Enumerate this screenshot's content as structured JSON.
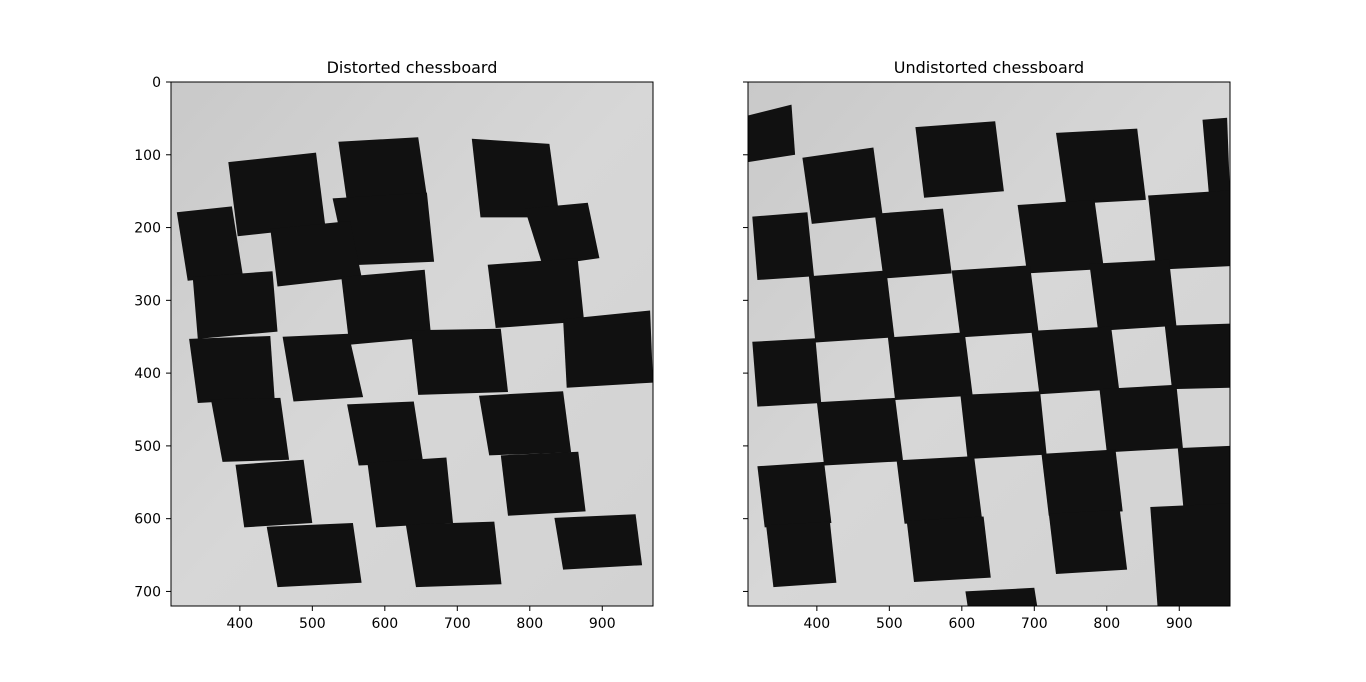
{
  "chart_data": [
    {
      "type": "image",
      "title": "Distorted chessboard",
      "xlim": [
        305,
        970
      ],
      "ylim": [
        720,
        0
      ],
      "xticks": [
        400,
        500,
        600,
        700,
        800,
        900
      ],
      "yticks": [
        0,
        100,
        200,
        300,
        400,
        500,
        600,
        700
      ],
      "show_ytick_labels": true,
      "grid": false,
      "content": "grayscale photo of a black and white chessboard",
      "board_quads": [
        [
          [
            384,
            110
          ],
          [
            505,
            97
          ],
          [
            518,
            199
          ],
          [
            397,
            212
          ]
        ],
        [
          [
            389,
            171
          ],
          [
            404,
            265
          ],
          [
            328,
            273
          ],
          [
            313,
            179
          ]
        ],
        [
          [
            536,
            82
          ],
          [
            646,
            76
          ],
          [
            658,
            157
          ],
          [
            548,
            166
          ]
        ],
        [
          [
            668,
            247
          ],
          [
            548,
            252
          ],
          [
            528,
            160
          ],
          [
            658,
            152
          ]
        ],
        [
          [
            720,
            78
          ],
          [
            827,
            85
          ],
          [
            841,
            186
          ],
          [
            732,
            186
          ]
        ],
        [
          [
            793,
            174
          ],
          [
            880,
            166
          ],
          [
            896,
            242
          ],
          [
            818,
            253
          ]
        ],
        [
          [
            442,
            202
          ],
          [
            552,
            191
          ],
          [
            568,
            268
          ],
          [
            452,
            281
          ]
        ],
        [
          [
            335,
            268
          ],
          [
            445,
            260
          ],
          [
            452,
            343
          ],
          [
            342,
            353
          ]
        ],
        [
          [
            540,
            268
          ],
          [
            655,
            258
          ],
          [
            664,
            351
          ],
          [
            551,
            361
          ]
        ],
        [
          [
            742,
            251
          ],
          [
            866,
            242
          ],
          [
            875,
            329
          ],
          [
            753,
            338
          ]
        ],
        [
          [
            459,
            350
          ],
          [
            550,
            346
          ],
          [
            570,
            433
          ],
          [
            474,
            439
          ]
        ],
        [
          [
            330,
            353
          ],
          [
            442,
            349
          ],
          [
            448,
            435
          ],
          [
            342,
            441
          ]
        ],
        [
          [
            636,
            341
          ],
          [
            760,
            339
          ],
          [
            770,
            426
          ],
          [
            646,
            430
          ]
        ],
        [
          [
            846,
            326
          ],
          [
            966,
            314
          ],
          [
            970,
            413
          ],
          [
            851,
            420
          ]
        ],
        [
          [
            548,
            443
          ],
          [
            640,
            439
          ],
          [
            653,
            523
          ],
          [
            564,
            527
          ]
        ],
        [
          [
            360,
            436
          ],
          [
            456,
            434
          ],
          [
            468,
            519
          ],
          [
            376,
            522
          ]
        ],
        [
          [
            730,
            431
          ],
          [
            846,
            425
          ],
          [
            857,
            509
          ],
          [
            744,
            513
          ]
        ],
        [
          [
            394,
            526
          ],
          [
            488,
            519
          ],
          [
            500,
            606
          ],
          [
            406,
            612
          ]
        ],
        [
          [
            576,
            523
          ],
          [
            685,
            516
          ],
          [
            694,
            606
          ],
          [
            588,
            612
          ]
        ],
        [
          [
            760,
            513
          ],
          [
            867,
            508
          ],
          [
            877,
            590
          ],
          [
            770,
            596
          ]
        ],
        [
          [
            437,
            611
          ],
          [
            556,
            606
          ],
          [
            568,
            688
          ],
          [
            452,
            694
          ]
        ],
        [
          [
            629,
            608
          ],
          [
            751,
            604
          ],
          [
            761,
            690
          ],
          [
            643,
            694
          ]
        ],
        [
          [
            834,
            599
          ],
          [
            946,
            594
          ],
          [
            955,
            664
          ],
          [
            846,
            670
          ]
        ]
      ]
    },
    {
      "type": "image",
      "title": "Undistorted chessboard",
      "xlim": [
        305,
        970
      ],
      "ylim": [
        720,
        0
      ],
      "xticks": [
        400,
        500,
        600,
        700,
        800,
        900
      ],
      "yticks": [
        0,
        100,
        200,
        300,
        400,
        500,
        600,
        700
      ],
      "show_ytick_labels": false,
      "grid": false,
      "content": "grayscale photo of a black and white chessboard",
      "board_quads": [
        [
          [
            305,
            46
          ],
          [
            365,
            31
          ],
          [
            370,
            100
          ],
          [
            305,
            110
          ]
        ],
        [
          [
            380,
            104
          ],
          [
            478,
            90
          ],
          [
            491,
            185
          ],
          [
            393,
            195
          ]
        ],
        [
          [
            536,
            62
          ],
          [
            646,
            54
          ],
          [
            658,
            150
          ],
          [
            548,
            159
          ]
        ],
        [
          [
            730,
            70
          ],
          [
            842,
            64
          ],
          [
            854,
            162
          ],
          [
            744,
            168
          ]
        ],
        [
          [
            932,
            52
          ],
          [
            966,
            49
          ],
          [
            970,
            154
          ],
          [
            941,
            156
          ]
        ],
        [
          [
            311,
            185
          ],
          [
            387,
            179
          ],
          [
            396,
            267
          ],
          [
            318,
            272
          ]
        ],
        [
          [
            480,
            181
          ],
          [
            574,
            174
          ],
          [
            586,
            263
          ],
          [
            492,
            270
          ]
        ],
        [
          [
            677,
            169
          ],
          [
            783,
            162
          ],
          [
            796,
            257
          ],
          [
            690,
            263
          ]
        ],
        [
          [
            857,
            156
          ],
          [
            970,
            149
          ],
          [
            970,
            253
          ],
          [
            868,
            258
          ]
        ],
        [
          [
            389,
            267
          ],
          [
            496,
            259
          ],
          [
            507,
            351
          ],
          [
            398,
            358
          ]
        ],
        [
          [
            586,
            259
          ],
          [
            694,
            252
          ],
          [
            706,
            344
          ],
          [
            598,
            351
          ]
        ],
        [
          [
            776,
            250
          ],
          [
            886,
            244
          ],
          [
            896,
            335
          ],
          [
            788,
            342
          ]
        ],
        [
          [
            311,
            357
          ],
          [
            398,
            352
          ],
          [
            406,
            441
          ],
          [
            318,
            446
          ]
        ],
        [
          [
            498,
            351
          ],
          [
            604,
            344
          ],
          [
            615,
            431
          ],
          [
            508,
            437
          ]
        ],
        [
          [
            696,
            342
          ],
          [
            806,
            336
          ],
          [
            817,
            422
          ],
          [
            707,
            429
          ]
        ],
        [
          [
            880,
            335
          ],
          [
            970,
            332
          ],
          [
            970,
            420
          ],
          [
            890,
            422
          ]
        ],
        [
          [
            400,
            440
          ],
          [
            508,
            434
          ],
          [
            519,
            521
          ],
          [
            410,
            527
          ]
        ],
        [
          [
            598,
            430
          ],
          [
            708,
            425
          ],
          [
            717,
            512
          ],
          [
            608,
            518
          ]
        ],
        [
          [
            790,
            422
          ],
          [
            896,
            416
          ],
          [
            905,
            503
          ],
          [
            800,
            509
          ]
        ],
        [
          [
            318,
            528
          ],
          [
            410,
            522
          ],
          [
            420,
            606
          ],
          [
            328,
            612
          ]
        ],
        [
          [
            510,
            520
          ],
          [
            617,
            514
          ],
          [
            628,
            601
          ],
          [
            521,
            607
          ]
        ],
        [
          [
            710,
            511
          ],
          [
            812,
            505
          ],
          [
            822,
            590
          ],
          [
            720,
            596
          ]
        ],
        [
          [
            898,
            503
          ],
          [
            970,
            500
          ],
          [
            970,
            585
          ],
          [
            906,
            588
          ]
        ],
        [
          [
            330,
            609
          ],
          [
            418,
            604
          ],
          [
            427,
            688
          ],
          [
            340,
            694
          ]
        ],
        [
          [
            524,
            603
          ],
          [
            630,
            597
          ],
          [
            640,
            681
          ],
          [
            534,
            687
          ]
        ],
        [
          [
            720,
            593
          ],
          [
            818,
            588
          ],
          [
            828,
            670
          ],
          [
            730,
            676
          ]
        ],
        [
          [
            860,
            584
          ],
          [
            970,
            579
          ],
          [
            970,
            720
          ],
          [
            870,
            720
          ]
        ],
        [
          [
            605,
            700
          ],
          [
            700,
            695
          ],
          [
            704,
            720
          ],
          [
            608,
            720
          ]
        ]
      ]
    }
  ]
}
